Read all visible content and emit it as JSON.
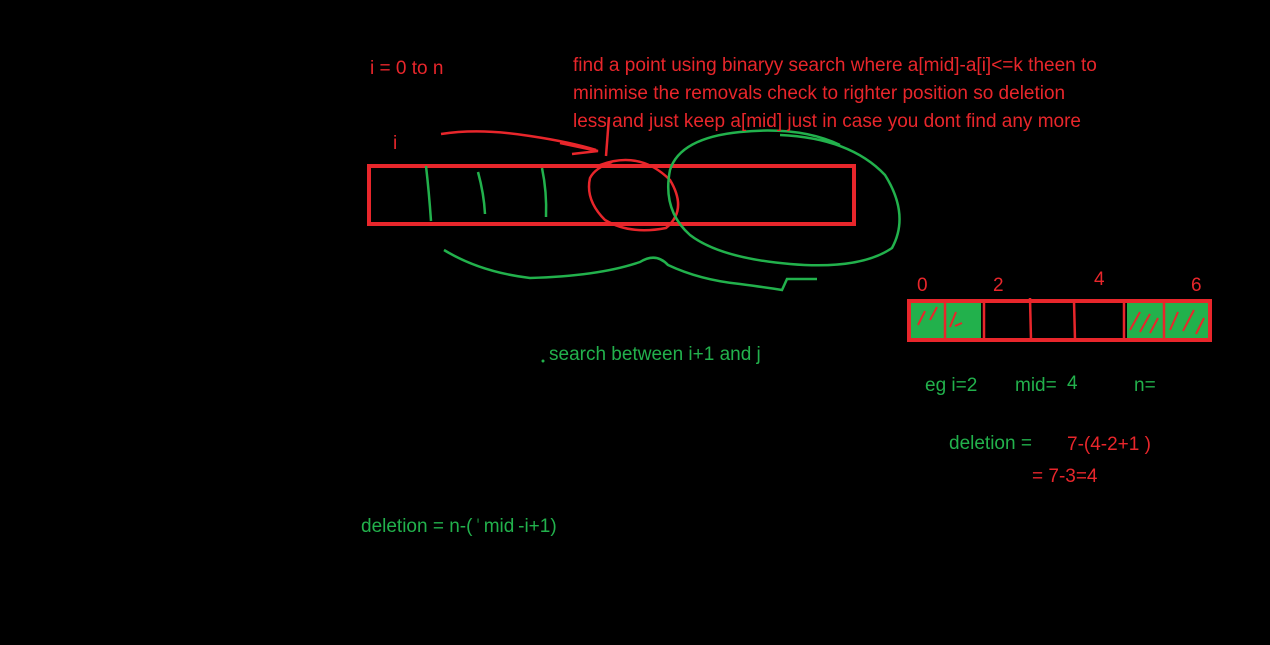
{
  "colors": {
    "background": "#000000",
    "red": "#e8262b",
    "green": "#22b14c"
  },
  "notes": {
    "loop": "i  = 0 to n",
    "description_lines": [
      "find a point using binaryy search where a[mid]-a[i]<=k theen to",
      "minimise the removals check to righter position so deletion",
      "less and just keep a[mid] just in case you dont find any more"
    ],
    "i_marker": "i",
    "search_between": "search between i+1 and j",
    "deletion_formula": "deletion = n-(",
    "deletion_formula_mid": "mid",
    "deletion_formula_end": "-i+1)"
  },
  "example": {
    "index_labels": [
      "0",
      "2",
      "4",
      "6"
    ],
    "eg_i": "eg i=2",
    "mid_label": "mid=",
    "mid_value": "4",
    "n_label": "n=",
    "deletion_label": "deletion =",
    "deletion_calc": "7-(4-2+1  )",
    "deletion_result": "= 7-3=4"
  }
}
